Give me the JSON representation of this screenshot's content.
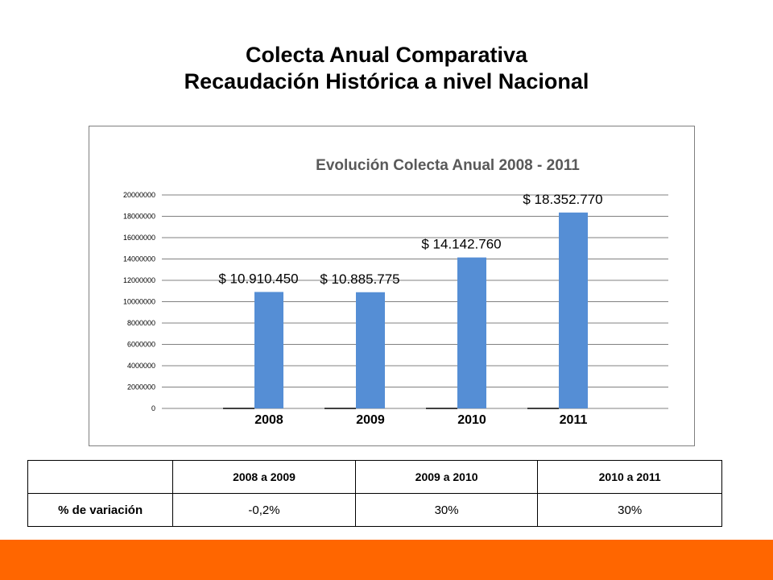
{
  "page": {
    "title_line1": "Colecta Anual Comparativa",
    "title_line2": "Recaudación Histórica a nivel Nacional"
  },
  "chart_data": {
    "type": "bar",
    "title": "Evolución Colecta Anual 2008 - 2011",
    "categories": [
      "2008",
      "2009",
      "2010",
      "2011"
    ],
    "values": [
      10910450,
      10885775,
      14142760,
      18352770
    ],
    "data_labels": [
      "$ 10.910.450",
      "$ 10.885.775",
      "$ 14.142.760",
      "$ 18.352.770"
    ],
    "ylim": [
      0,
      20000000
    ],
    "yticks": [
      "0",
      "2000000",
      "4000000",
      "6000000",
      "8000000",
      "10000000",
      "12000000",
      "14000000",
      "16000000",
      "18000000",
      "20000000"
    ],
    "grid": true,
    "bar_color": "#558ed5"
  },
  "table": {
    "header": [
      "",
      "2008 a 2009",
      "2009 a 2010",
      "2010 a 2011"
    ],
    "row_label": "% de variación",
    "row_values": [
      "-0,2%",
      "30%",
      "30%"
    ]
  },
  "colors": {
    "footer": "#ff6600",
    "grid": "#808080"
  }
}
